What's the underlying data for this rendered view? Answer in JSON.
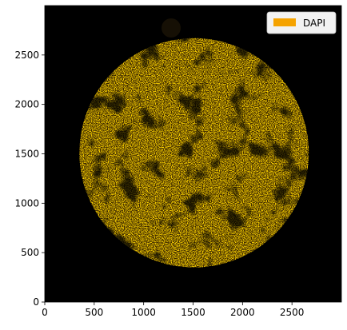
{
  "chart_data": {
    "type": "image",
    "xlim": [
      0,
      3000
    ],
    "ylim": [
      0,
      3000
    ],
    "x_ticks": [
      0,
      500,
      1000,
      1500,
      2000,
      2500
    ],
    "y_ticks": [
      0,
      500,
      1000,
      1500,
      2000,
      2500
    ],
    "x_tick_labels": [
      "0",
      "500",
      "1000",
      "1500",
      "2000",
      "2500"
    ],
    "y_tick_labels": [
      "0",
      "500",
      "1000",
      "1500",
      "2000",
      "2500"
    ],
    "background_color": "#000000",
    "tissue": {
      "center_x": 1510,
      "center_y": 1510,
      "radius": 1160
    },
    "legend": {
      "placement": "top-right",
      "entries": [
        {
          "label": "DAPI",
          "color": "#f5a300"
        }
      ]
    }
  }
}
